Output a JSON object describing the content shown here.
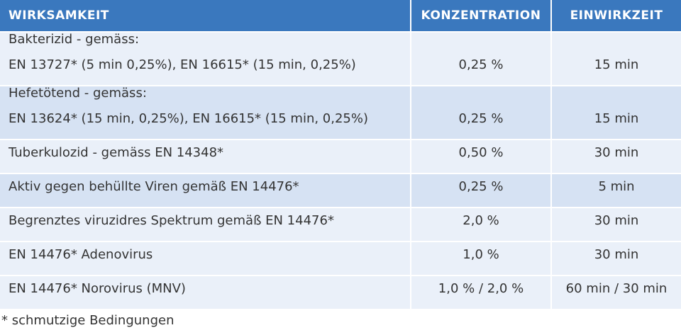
{
  "table": {
    "header": [
      "WIRKSAMKEIT",
      "KONZENTRATION",
      "EINWIRKZEIT"
    ],
    "rows": [
      [
        [
          "Bakterizid - gemäss:",
          "EN 13727* (5 min 0,25%), EN 16615* (15 min, 0,25%)"
        ],
        [
          "0,25 %"
        ],
        [
          "15 min"
        ]
      ],
      [
        [
          "Hefetötend - gemäss:",
          "EN 13624* (15 min, 0,25%), EN 16615* (15 min, 0,25%)"
        ],
        [
          "0,25 %"
        ],
        [
          "15 min"
        ]
      ],
      [
        [
          "Tuberkulozid - gemäss EN 14348*"
        ],
        [
          "0,50 %"
        ],
        [
          "30 min"
        ]
      ],
      [
        [
          "Aktiv gegen behüllte Viren gemäß EN 14476*"
        ],
        [
          "0,25 %"
        ],
        [
          "5 min"
        ]
      ],
      [
        [
          "Begrenztes viruzidres Spektrum gemäß EN 14476*"
        ],
        [
          "2,0 %"
        ],
        [
          "30 min"
        ]
      ],
      [
        [
          "EN 14476* Adenovirus"
        ],
        [
          "1,0 %"
        ],
        [
          "30 min"
        ]
      ],
      [
        [
          "EN 14476* Norovirus (MNV)"
        ],
        [
          "1,0 % / 2,0 %"
        ],
        [
          "60 min / 30 min"
        ]
      ]
    ]
  },
  "footnote": "* schmutzige Bedingungen"
}
